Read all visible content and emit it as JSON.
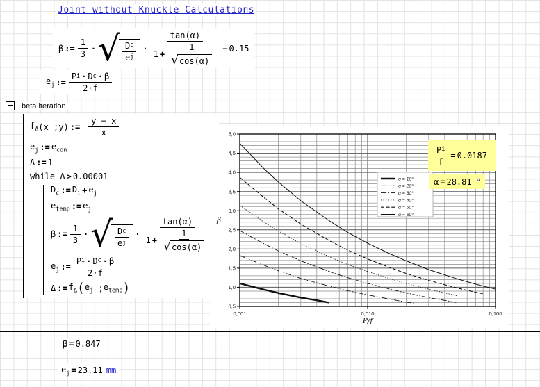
{
  "title": "Joint without Knuckle Calculations",
  "colors": {
    "link_blue": "#2222cc",
    "unit_blue": "#2222cc",
    "highlight_yellow": "#ffff99",
    "grid": "#e3e3e3"
  },
  "area": {
    "label": "beta iteration"
  },
  "formulas": {
    "beta_def": {
      "lhs": "β",
      "assign": ":=",
      "frac13_num": "1",
      "frac13_den": "3",
      "times1": "·",
      "times2": "·",
      "sqrt_sign": "√",
      "rad_num_base": "D",
      "rad_num_sub": "c",
      "rad_den_base": "e",
      "rad_den_sub": "j",
      "tan_num": "tan(α)",
      "den_one": "1",
      "plus": "+",
      "inner_num": "1",
      "inner_sqrt_sign": "√",
      "inner_sqrt_body": "cos(α)",
      "minus": "−",
      "const": "0.15"
    },
    "ej_def": {
      "lhs_base": "e",
      "lhs_sub": "j",
      "assign": ":=",
      "p": "P",
      "p_sub": "i",
      "dot1": "·",
      "d": "D",
      "d_sub": "c",
      "dot2": "·",
      "beta": "β",
      "den": "2·f"
    }
  },
  "program": {
    "line1": {
      "f": "f",
      "f_sub": "Δ",
      "args": "(x ;y)",
      "assign": ":=",
      "num": "y − x",
      "den": "x"
    },
    "line2": {
      "lhs": "e",
      "lhs_sub": "j",
      "assign": ":=",
      "rhs": "e",
      "rhs_sub": "con"
    },
    "line3": {
      "lhs": "Δ",
      "assign": ":=",
      "rhs": "1"
    },
    "line4": {
      "kw": "while ",
      "var": "Δ",
      "op": ">",
      "val": "0.00001"
    },
    "line5": {
      "lhs": "D",
      "lhs_sub": "c",
      "assign": ":=",
      "a": "D",
      "a_sub": "i",
      "plus": "+",
      "b": "e",
      "b_sub": "j"
    },
    "line6": {
      "lhs": "e",
      "lhs_sub": "temp",
      "assign": ":=",
      "rhs": "e",
      "rhs_sub": "j"
    },
    "line9": {
      "lhs": "Δ",
      "assign": ":=",
      "f": "f",
      "f_sub": "Δ",
      "open": "(",
      "a": "e",
      "a_sub": "j",
      "sep": " ;",
      "b": "e",
      "b_sub": "temp",
      "close": ")"
    }
  },
  "overlays": {
    "pf": {
      "num_base": "P",
      "num_sub": "i",
      "den": "f",
      "eq": "=",
      "value": "0.0187"
    },
    "alpha": {
      "lhs": "α",
      "eq": "=",
      "value": "28.81",
      "unit": "°"
    }
  },
  "results": {
    "beta": {
      "lhs": "β",
      "eq": "=",
      "value": "0.847"
    },
    "ej": {
      "lhs": "e",
      "lhs_sub": "j",
      "eq": "=",
      "value": "23.11",
      "unit": "mm"
    }
  },
  "chart_data": {
    "type": "line",
    "title": "",
    "xlabel": "P/f",
    "ylabel": "β",
    "x_scale": "log",
    "xlim": [
      0.001,
      0.1
    ],
    "ylim": [
      0.5,
      5.0
    ],
    "x_ticks": [
      "0,001",
      "0,010",
      "0,100"
    ],
    "x_tick_values": [
      0.001,
      0.01,
      0.1
    ],
    "y_tick_labels": [
      "0,5",
      "1,0",
      "1,5",
      "2,0",
      "2,5",
      "3,0",
      "3,5",
      "4,0",
      "4,5",
      "5,0"
    ],
    "y_minor_step": 0.1,
    "grid": true,
    "legend_position": "inset upper-right",
    "series": [
      {
        "name": "α = 10°",
        "style": "solid-thick",
        "points": [
          [
            0.001,
            1.1
          ],
          [
            0.0015,
            0.95
          ],
          [
            0.002,
            0.85
          ],
          [
            0.003,
            0.73
          ],
          [
            0.004,
            0.66
          ],
          [
            0.005,
            0.6
          ]
        ]
      },
      {
        "name": "α = 20°",
        "style": "dash-dot-dot",
        "points": [
          [
            0.001,
            1.83
          ],
          [
            0.0015,
            1.59
          ],
          [
            0.002,
            1.43
          ],
          [
            0.003,
            1.23
          ],
          [
            0.005,
            1.03
          ],
          [
            0.007,
            0.91
          ],
          [
            0.01,
            0.8
          ],
          [
            0.015,
            0.69
          ],
          [
            0.02,
            0.61
          ],
          [
            0.024,
            0.58
          ]
        ]
      },
      {
        "name": "α = 30°",
        "style": "dash-dot",
        "points": [
          [
            0.001,
            2.48
          ],
          [
            0.0015,
            2.16
          ],
          [
            0.002,
            1.95
          ],
          [
            0.003,
            1.69
          ],
          [
            0.005,
            1.41
          ],
          [
            0.007,
            1.25
          ],
          [
            0.01,
            1.1
          ],
          [
            0.015,
            0.95
          ],
          [
            0.02,
            0.85
          ],
          [
            0.03,
            0.73
          ],
          [
            0.05,
            0.6
          ]
        ]
      },
      {
        "name": "α = 40°",
        "style": "dotted",
        "points": [
          [
            0.001,
            3.14
          ],
          [
            0.0015,
            2.73
          ],
          [
            0.002,
            2.47
          ],
          [
            0.003,
            2.14
          ],
          [
            0.005,
            1.8
          ],
          [
            0.007,
            1.59
          ],
          [
            0.01,
            1.41
          ],
          [
            0.015,
            1.22
          ],
          [
            0.02,
            1.1
          ],
          [
            0.03,
            0.95
          ],
          [
            0.05,
            0.78
          ]
        ]
      },
      {
        "name": "α = 50°",
        "style": "dashed",
        "points": [
          [
            0.001,
            3.87
          ],
          [
            0.0015,
            3.38
          ],
          [
            0.002,
            3.05
          ],
          [
            0.003,
            2.65
          ],
          [
            0.005,
            2.22
          ],
          [
            0.007,
            1.97
          ],
          [
            0.01,
            1.74
          ],
          [
            0.015,
            1.51
          ],
          [
            0.02,
            1.36
          ],
          [
            0.03,
            1.18
          ],
          [
            0.05,
            0.98
          ],
          [
            0.07,
            0.87
          ],
          [
            0.08,
            0.83
          ]
        ]
      },
      {
        "name": "α = 60°",
        "style": "solid-thin",
        "points": [
          [
            0.001,
            4.76
          ],
          [
            0.0015,
            4.14
          ],
          [
            0.002,
            3.75
          ],
          [
            0.003,
            3.26
          ],
          [
            0.005,
            2.74
          ],
          [
            0.007,
            2.43
          ],
          [
            0.01,
            2.15
          ],
          [
            0.015,
            1.87
          ],
          [
            0.02,
            1.69
          ],
          [
            0.03,
            1.46
          ],
          [
            0.05,
            1.22
          ],
          [
            0.07,
            1.08
          ],
          [
            0.1,
            0.95
          ]
        ]
      }
    ]
  }
}
